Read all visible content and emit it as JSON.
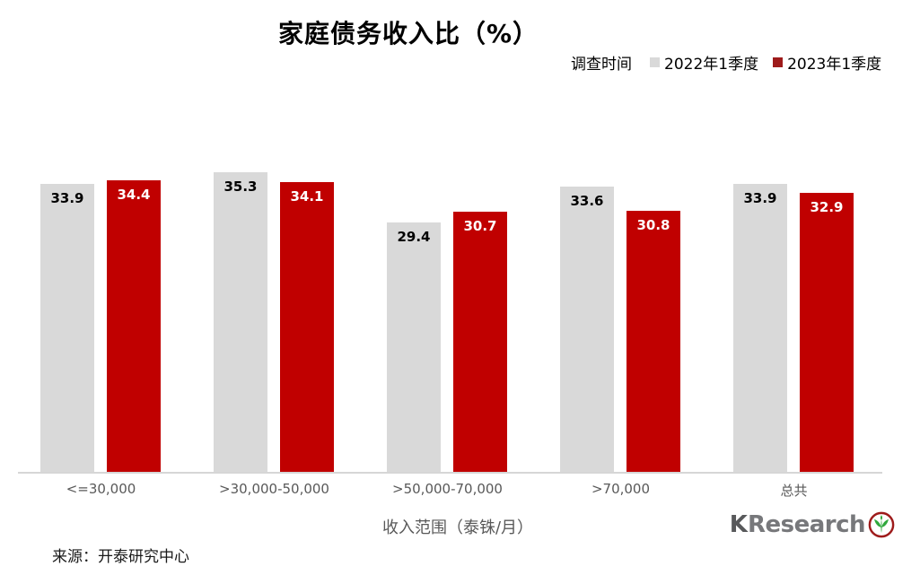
{
  "chart_data": {
    "type": "bar",
    "title": "家庭债务收入比（%）",
    "legend_title": "调查时间",
    "legend_position": "top-right",
    "categories": [
      "<=30,000",
      ">30,000-50,000",
      ">50,000-70,000",
      ">70,000",
      "总共"
    ],
    "series": [
      {
        "name": "2022年1季度",
        "color": "#D9D9D9",
        "label_color": "#000000",
        "marker_color": "#D9D9D9",
        "values": [
          33.9,
          35.3,
          29.4,
          33.6,
          33.9
        ]
      },
      {
        "name": "2023年1季度",
        "color": "#C00000",
        "label_color": "#FFFFFF",
        "marker_color": "#9E1B1B",
        "values": [
          34.4,
          34.1,
          30.7,
          30.8,
          32.9
        ]
      }
    ],
    "xlabel": "收入范围（泰铢/月）",
    "ylabel": "",
    "ylim": [
      0,
      36
    ],
    "grid": false
  },
  "footer": {
    "source": "来源：开泰研究中心"
  },
  "logo": {
    "text_k": "K",
    "text_research": "Research",
    "ring_color": "#9E1B1B",
    "leaf_color": "#2FA83C"
  }
}
